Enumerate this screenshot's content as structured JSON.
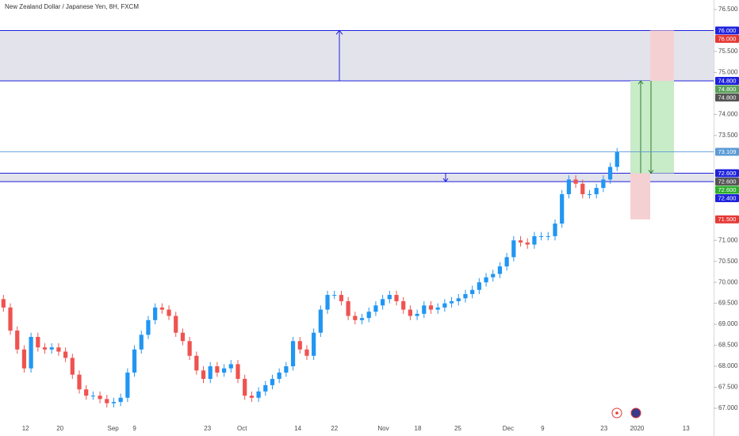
{
  "chart_data": {
    "type": "candlestick",
    "title": "New Zealand Dollar / Japanese Yen, 8H, FXCM",
    "up_color": "#2196f3",
    "down_color": "#ef5350",
    "xlim": [
      -0.5,
      103
    ],
    "xticks": [
      {
        "value": 3.2,
        "label": "12"
      },
      {
        "value": 8.2,
        "label": "20"
      },
      {
        "value": 15.9,
        "label": "Sep"
      },
      {
        "value": 19.0,
        "label": "9"
      },
      {
        "value": 29.6,
        "label": "23"
      },
      {
        "value": 34.6,
        "label": "Oct"
      },
      {
        "value": 42.7,
        "label": "14"
      },
      {
        "value": 48.0,
        "label": "22"
      },
      {
        "value": 55.1,
        "label": "Nov"
      },
      {
        "value": 60.1,
        "label": "18"
      },
      {
        "value": 65.9,
        "label": "25"
      },
      {
        "value": 73.2,
        "label": "Dec"
      },
      {
        "value": 78.2,
        "label": "9"
      },
      {
        "value": 87.1,
        "label": "23"
      },
      {
        "value": 91.9,
        "label": "2020"
      },
      {
        "value": 99.0,
        "label": "13"
      }
    ],
    "ylim": [
      67.0,
      76.5
    ],
    "yticks": [
      {
        "value": 76.5,
        "label": "76.500"
      },
      {
        "value": 75.5,
        "label": "75.500"
      },
      {
        "value": 75.0,
        "label": "75.000"
      },
      {
        "value": 74.0,
        "label": "74.000"
      },
      {
        "value": 73.5,
        "label": "73.500"
      },
      {
        "value": 71.0,
        "label": "71.000"
      },
      {
        "value": 70.5,
        "label": "70.500"
      },
      {
        "value": 70.0,
        "label": "70.000"
      },
      {
        "value": 69.5,
        "label": "69.500"
      },
      {
        "value": 69.0,
        "label": "69.000"
      },
      {
        "value": 68.5,
        "label": "68.500"
      },
      {
        "value": 68.0,
        "label": "68.000"
      },
      {
        "value": 67.5,
        "label": "67.500"
      },
      {
        "value": 67.0,
        "label": "67.000"
      }
    ],
    "open": [
      69.6,
      69.4,
      68.85,
      68.4,
      67.95,
      68.7,
      68.45,
      68.4,
      68.45,
      68.35,
      68.2,
      67.8,
      67.45,
      67.3,
      67.3,
      67.22,
      67.12,
      67.15,
      67.25,
      67.85,
      68.4,
      68.75,
      69.1,
      69.4,
      69.35,
      69.2,
      68.8,
      68.6,
      68.25,
      67.9,
      67.7,
      68.0,
      67.85,
      67.95,
      68.05,
      67.7,
      67.3,
      67.25,
      67.4,
      67.55,
      67.7,
      67.85,
      68.0,
      68.6,
      68.4,
      68.25,
      68.8,
      69.35,
      69.7,
      69.7,
      69.55,
      69.2,
      69.1,
      69.15,
      69.3,
      69.45,
      69.6,
      69.7,
      69.55,
      69.35,
      69.2,
      69.25,
      69.45,
      69.35,
      69.4,
      69.5,
      69.55,
      69.62,
      69.72,
      69.82,
      70.0,
      70.12,
      70.2,
      70.38,
      70.6,
      71.0,
      70.95,
      70.9,
      71.1,
      71.1,
      71.1,
      71.4,
      72.1,
      72.45,
      72.35,
      72.1,
      72.1,
      72.25,
      72.45,
      72.75
    ],
    "high": [
      69.7,
      69.5,
      68.95,
      68.5,
      68.8,
      68.8,
      68.55,
      68.55,
      68.55,
      68.45,
      68.3,
      67.9,
      67.55,
      67.4,
      67.4,
      67.32,
      67.25,
      67.35,
      67.95,
      68.5,
      68.85,
      69.2,
      69.5,
      69.5,
      69.45,
      69.3,
      68.9,
      68.7,
      68.35,
      68.0,
      68.1,
      68.1,
      68.05,
      68.15,
      68.15,
      67.8,
      67.4,
      67.5,
      67.65,
      67.8,
      67.95,
      68.1,
      68.7,
      68.7,
      68.5,
      68.9,
      69.45,
      69.8,
      69.8,
      69.8,
      69.65,
      69.3,
      69.25,
      69.4,
      69.55,
      69.7,
      69.8,
      69.8,
      69.65,
      69.45,
      69.35,
      69.55,
      69.55,
      69.5,
      69.6,
      69.65,
      69.72,
      69.82,
      69.92,
      70.1,
      70.22,
      70.3,
      70.48,
      70.7,
      71.1,
      71.1,
      71.05,
      71.2,
      71.2,
      71.2,
      71.5,
      72.2,
      72.55,
      72.55,
      72.45,
      72.2,
      72.35,
      72.55,
      72.85,
      73.2
    ],
    "low": [
      69.3,
      68.75,
      68.3,
      67.85,
      67.85,
      68.35,
      68.3,
      68.3,
      68.25,
      68.1,
      67.7,
      67.35,
      67.2,
      67.2,
      67.12,
      67.02,
      67.02,
      67.05,
      67.15,
      67.75,
      68.3,
      68.65,
      69.0,
      69.25,
      69.1,
      68.7,
      68.5,
      68.15,
      67.8,
      67.6,
      67.6,
      67.75,
      67.75,
      67.85,
      67.6,
      67.2,
      67.15,
      67.15,
      67.3,
      67.45,
      67.6,
      67.75,
      67.9,
      68.3,
      68.15,
      68.15,
      68.7,
      69.25,
      69.6,
      69.45,
      69.1,
      69.0,
      69.0,
      69.05,
      69.2,
      69.35,
      69.5,
      69.45,
      69.25,
      69.1,
      69.1,
      69.15,
      69.25,
      69.25,
      69.3,
      69.4,
      69.45,
      69.52,
      69.62,
      69.72,
      69.9,
      70.02,
      70.1,
      70.28,
      70.5,
      70.85,
      70.8,
      70.8,
      71.0,
      71.0,
      71.0,
      71.3,
      72.0,
      72.25,
      72.0,
      72.0,
      72.0,
      72.15,
      72.35,
      72.65
    ],
    "close": [
      69.4,
      68.85,
      68.4,
      67.95,
      68.7,
      68.45,
      68.4,
      68.45,
      68.35,
      68.2,
      67.8,
      67.45,
      67.3,
      67.3,
      67.22,
      67.12,
      67.15,
      67.25,
      67.85,
      68.4,
      68.75,
      69.1,
      69.4,
      69.35,
      69.2,
      68.8,
      68.6,
      68.25,
      67.9,
      67.7,
      68.0,
      67.85,
      67.95,
      68.05,
      67.7,
      67.3,
      67.25,
      67.4,
      67.55,
      67.7,
      67.85,
      68.0,
      68.6,
      68.4,
      68.25,
      68.8,
      69.35,
      69.7,
      69.7,
      69.55,
      69.2,
      69.1,
      69.15,
      69.3,
      69.45,
      69.6,
      69.7,
      69.55,
      69.35,
      69.2,
      69.25,
      69.45,
      69.35,
      69.4,
      69.5,
      69.55,
      69.62,
      69.72,
      69.82,
      70.0,
      70.12,
      70.2,
      70.38,
      70.6,
      71.0,
      70.95,
      70.9,
      71.1,
      71.1,
      71.1,
      71.4,
      72.1,
      72.45,
      72.35,
      72.1,
      72.1,
      72.25,
      72.45,
      72.75,
      73.1
    ],
    "zones": [
      {
        "top": 76.0,
        "bottom": 74.8,
        "fill": "#e3e3ec",
        "line": "#1e22dd"
      },
      {
        "top": 72.6,
        "bottom": 72.4,
        "fill": "#e3e3ec",
        "line": "#1e22dd"
      }
    ],
    "last_price_line": {
      "value": 73.109,
      "color": "#5b9bd5"
    },
    "position": {
      "entry": 72.6,
      "target": 74.8,
      "stop": 71.5,
      "extra_top": 76.0,
      "profit_color": "#c8ebc8",
      "loss_color": "#f5d0d3"
    },
    "price_labels": [
      {
        "value": 76.0,
        "label": "76.000",
        "color": "#1e22dd"
      },
      {
        "value": 76.0,
        "label": "76.000",
        "color": "#e53935"
      },
      {
        "value": 74.8,
        "label": "74.800",
        "color": "#1e22dd"
      },
      {
        "value": 74.8,
        "label": "74.800",
        "color": "#5aa05a"
      },
      {
        "value": 74.8,
        "label": "74.800",
        "color": "#555555"
      },
      {
        "value": 73.109,
        "label": "73.109",
        "color": "#5b9bd5"
      },
      {
        "value": 72.6,
        "label": "72.600",
        "color": "#1e22dd"
      },
      {
        "value": 72.6,
        "label": "72.600",
        "color": "#555555"
      },
      {
        "value": 72.6,
        "label": "72.600",
        "color": "#2eae2e"
      },
      {
        "value": 72.4,
        "label": "72.400",
        "color": "#1e22dd"
      },
      {
        "value": 71.5,
        "label": "71.500",
        "color": "#e53935"
      }
    ]
  }
}
